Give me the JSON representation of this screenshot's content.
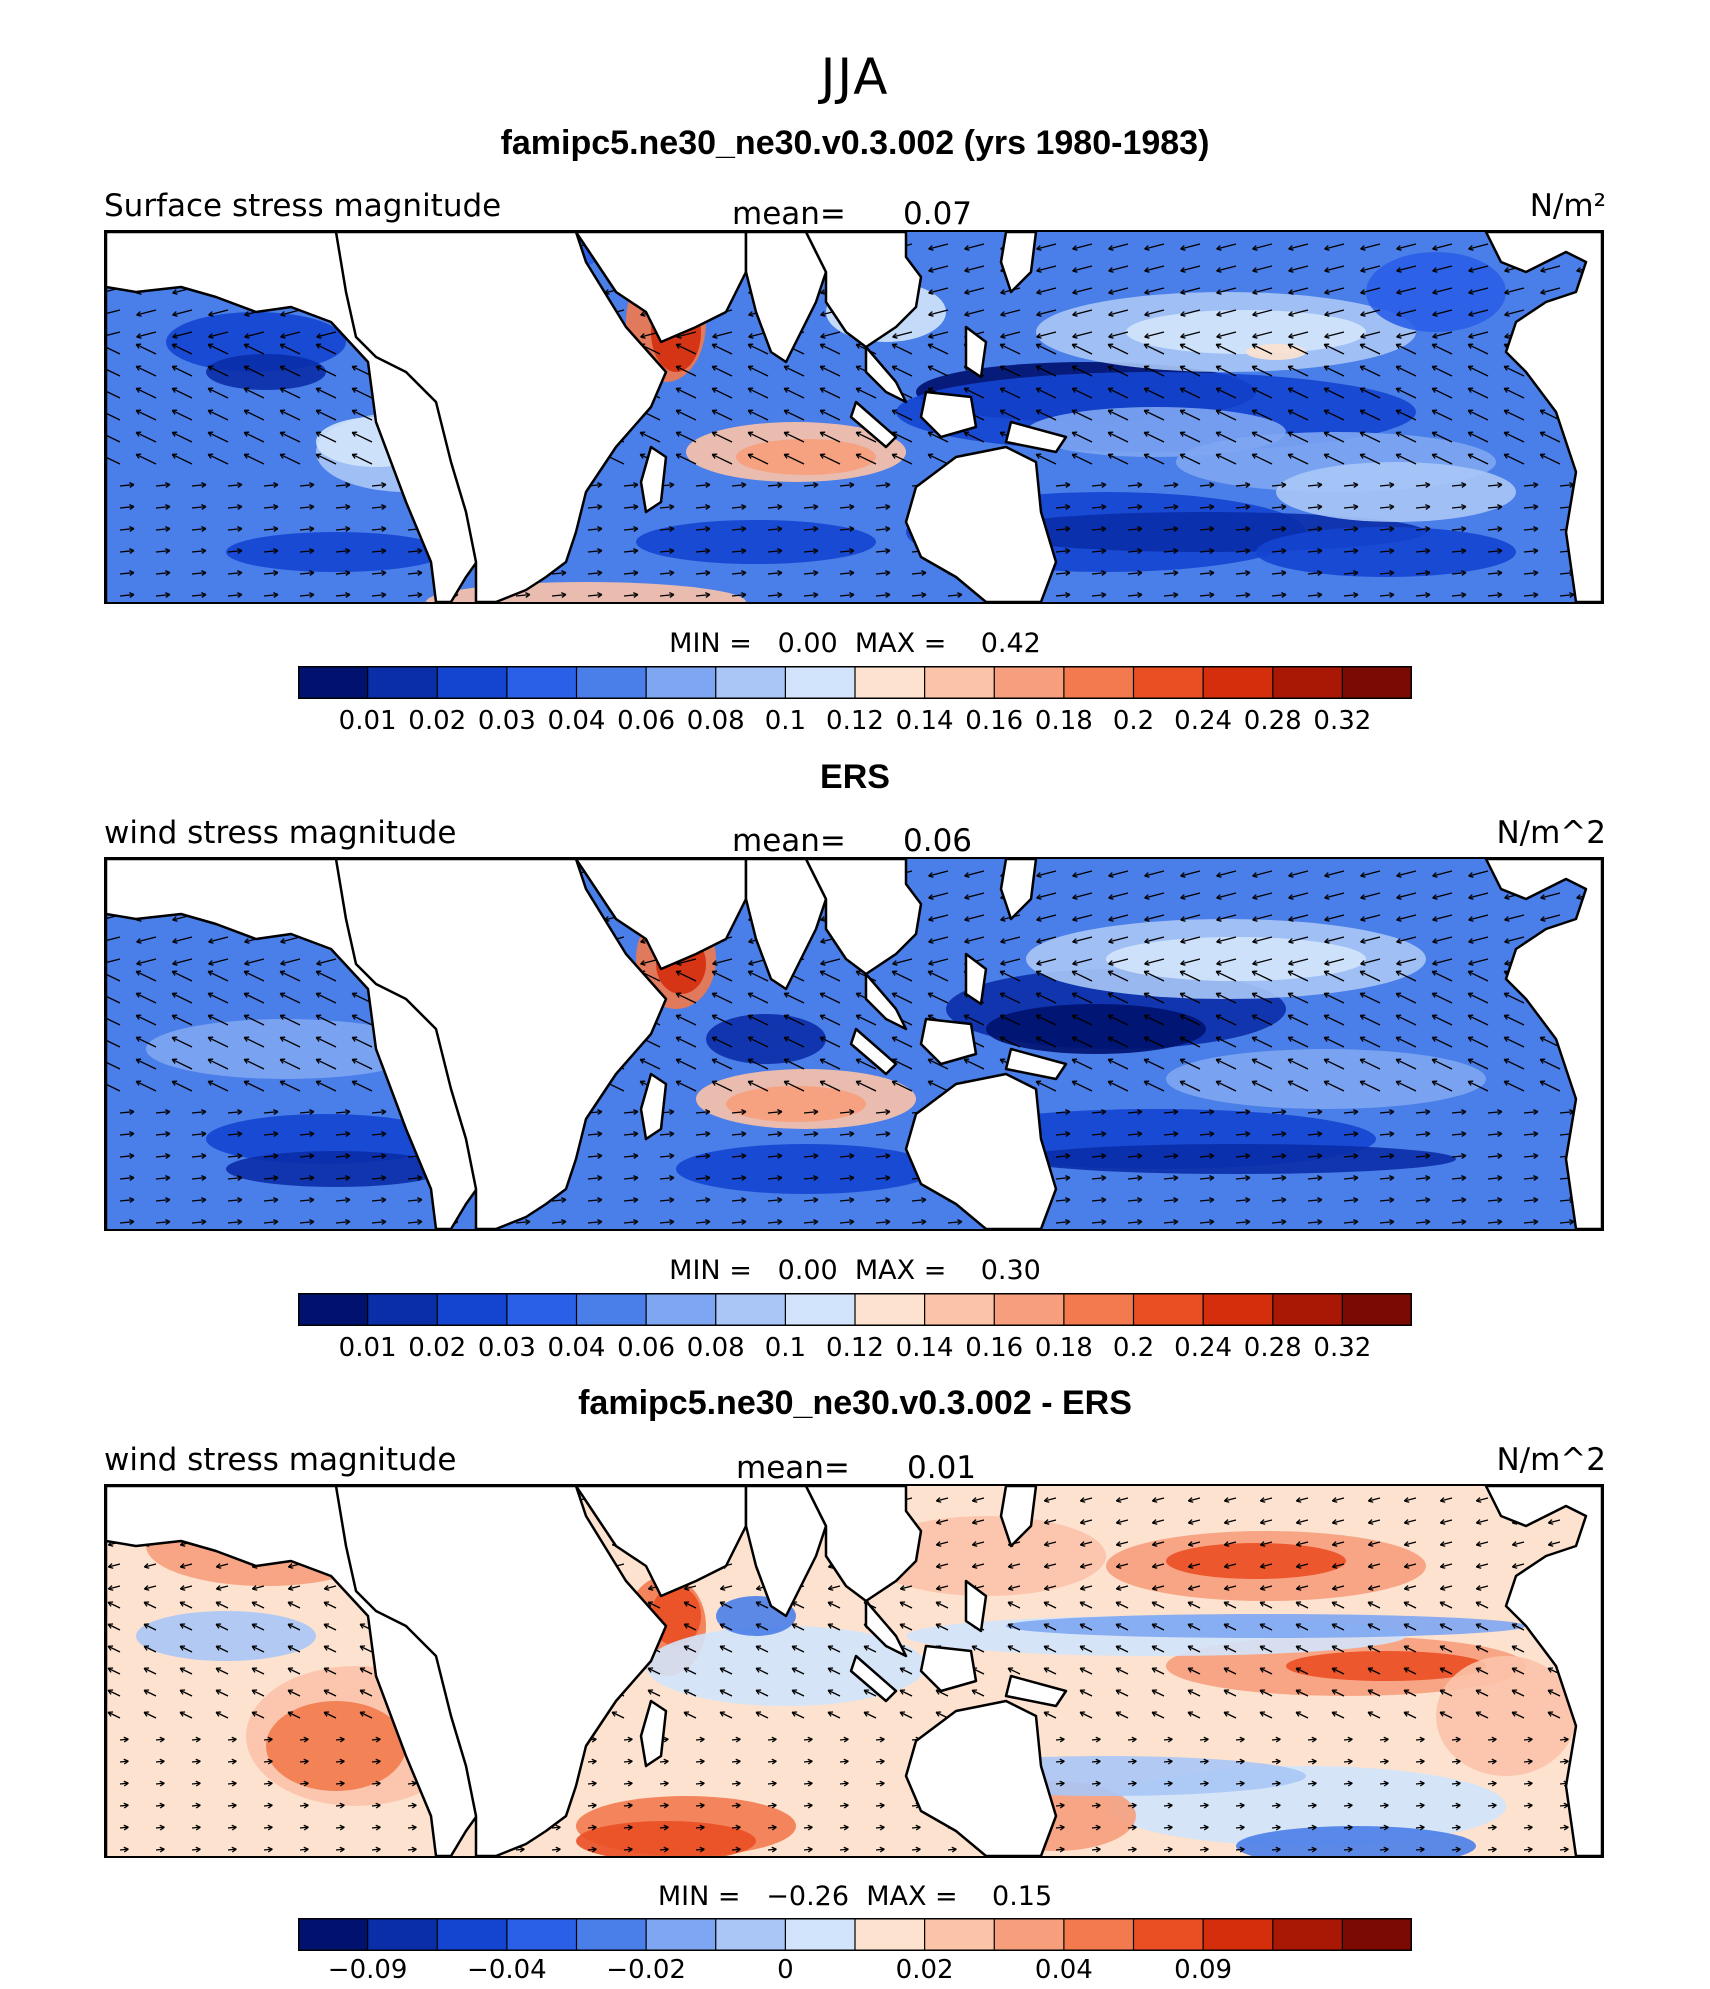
{
  "title": "JJA",
  "panels": [
    {
      "id": "model",
      "title": "famipc5.ne30_ne30.v0.3.002 (yrs 1980-1983)",
      "variable": "Surface stress magnitude",
      "mean_label": "mean=",
      "mean_value": "0.07",
      "units": "N/m²",
      "min_label": "MIN =",
      "min_value": "0.00",
      "max_label": "MAX =",
      "max_value": "0.42",
      "levels": [
        "0.01",
        "0.02",
        "0.03",
        "0.04",
        "0.06",
        "0.08",
        "0.1",
        "0.12",
        "0.14",
        "0.16",
        "0.18",
        "0.2",
        "0.24",
        "0.28",
        "0.32"
      ],
      "colors": [
        "#00126e",
        "#0a2ea8",
        "#1445d0",
        "#2a5fe8",
        "#4a7ee8",
        "#7ea6f2",
        "#a9c6f6",
        "#d2e4fb",
        "#fde2cf",
        "#fbc3a8",
        "#f79f7c",
        "#f27a4e",
        "#ea4f23",
        "#d42e0d",
        "#a91705",
        "#7a0a02"
      ],
      "map_style": "model"
    },
    {
      "id": "obs",
      "title": "ERS",
      "variable": "wind stress magnitude",
      "mean_label": "mean=",
      "mean_value": "0.06",
      "units": "N/m^2",
      "min_label": "MIN =",
      "min_value": "0.00",
      "max_label": "MAX =",
      "max_value": "0.30",
      "levels": [
        "0.01",
        "0.02",
        "0.03",
        "0.04",
        "0.06",
        "0.08",
        "0.1",
        "0.12",
        "0.14",
        "0.16",
        "0.18",
        "0.2",
        "0.24",
        "0.28",
        "0.32"
      ],
      "colors": [
        "#00126e",
        "#0a2ea8",
        "#1445d0",
        "#2a5fe8",
        "#4a7ee8",
        "#7ea6f2",
        "#a9c6f6",
        "#d2e4fb",
        "#fde2cf",
        "#fbc3a8",
        "#f79f7c",
        "#f27a4e",
        "#ea4f23",
        "#d42e0d",
        "#a91705",
        "#7a0a02"
      ],
      "map_style": "obs"
    },
    {
      "id": "diff",
      "title": "famipc5.ne30_ne30.v0.3.002 - ERS",
      "variable": "wind stress magnitude",
      "mean_label": "mean=",
      "mean_value": "0.01",
      "units": "N/m^2",
      "min_label": "MIN =",
      "min_value": "−0.26",
      "max_label": "MAX =",
      "max_value": "0.15",
      "levels": [
        "−0.09",
        "",
        "−0.04",
        "",
        "−0.02",
        "",
        "0",
        "",
        "0.02",
        "",
        "0.04",
        "",
        "0.09",
        ""
      ],
      "colors": [
        "#00126e",
        "#0a2ea8",
        "#1445d0",
        "#2a5fe8",
        "#4a7ee8",
        "#7ea6f2",
        "#a9c6f6",
        "#d2e4fb",
        "#fde2cf",
        "#fbc3a8",
        "#f79f7c",
        "#f27a4e",
        "#ea4f23",
        "#d42e0d",
        "#a91705",
        "#7a0a02"
      ],
      "map_style": "diff"
    }
  ]
}
